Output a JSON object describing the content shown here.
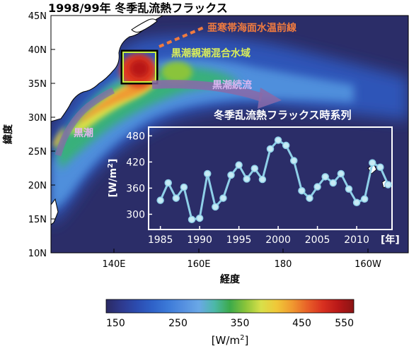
{
  "title": "1998/99年 冬季乱流熱フラックス",
  "map": {
    "ylabel": "緯度",
    "xlabel": "経度",
    "lat_ticks": [
      "45N",
      "40N",
      "35N",
      "30N",
      "25N",
      "20N",
      "15N",
      "10N"
    ],
    "lon_ticks": [
      "140E",
      "160E",
      "180",
      "160W"
    ],
    "annotations": {
      "front": "亜寒帯海面水温前線",
      "mixed": "黒潮親潮混合水域",
      "extension": "黒潮続流",
      "kuroshio": "黒潮"
    },
    "colors": {
      "front": "#f07b3f",
      "mixed": "#d9ee5a",
      "extension": "#d9b6f0",
      "kuroshio": "#e7b6ee",
      "box": "#c8f040"
    }
  },
  "colorbar": {
    "ticks": [
      "150",
      "250",
      "350",
      "450",
      "550"
    ],
    "unit_prefix": "[W/m",
    "unit_sup": "2",
    "unit_suffix": "]",
    "colors": [
      "#2b2a64",
      "#2e3a8e",
      "#2c4cb0",
      "#2f62c8",
      "#3c7ad8",
      "#5590e0",
      "#6aa8e6",
      "#4cb8a8",
      "#3caa4a",
      "#8ac43a",
      "#d8e04a",
      "#f0c838",
      "#f09a30",
      "#e86028",
      "#d83020",
      "#b81818",
      "#8a1414"
    ]
  },
  "chart_data": {
    "type": "line",
    "title": "冬季乱流熱フラックス時系列",
    "xlabel": "[年]",
    "ylabel_prefix": "[W/m",
    "ylabel_sup": "2",
    "ylabel_suffix": "]",
    "xlim": [
      1983.5,
      2014.5
    ],
    "ylim": [
      265,
      500
    ],
    "xticks": [
      1985,
      1990,
      1995,
      2000,
      2005,
      2010
    ],
    "yticks": [
      300,
      360,
      420,
      480
    ],
    "grid": false,
    "series": [
      {
        "x": [
          1985,
          1986,
          1987,
          1988,
          1989,
          1990,
          1991,
          1992,
          1993,
          1994,
          1995,
          1996,
          1997,
          1998,
          1999,
          2000,
          2001,
          2002,
          2003,
          2004,
          2005,
          2006,
          2007,
          2008,
          2009,
          2010,
          2011,
          2012,
          2013,
          2014
        ],
        "y": [
          332,
          372,
          337,
          362,
          288,
          291,
          393,
          317,
          337,
          390,
          413,
          381,
          405,
          380,
          450,
          470,
          458,
          423,
          354,
          337,
          363,
          386,
          372,
          393,
          358,
          327,
          335,
          418,
          408,
          368
        ]
      }
    ],
    "line_color": "#8fd0e8",
    "marker_color": "#c6eaf5"
  }
}
